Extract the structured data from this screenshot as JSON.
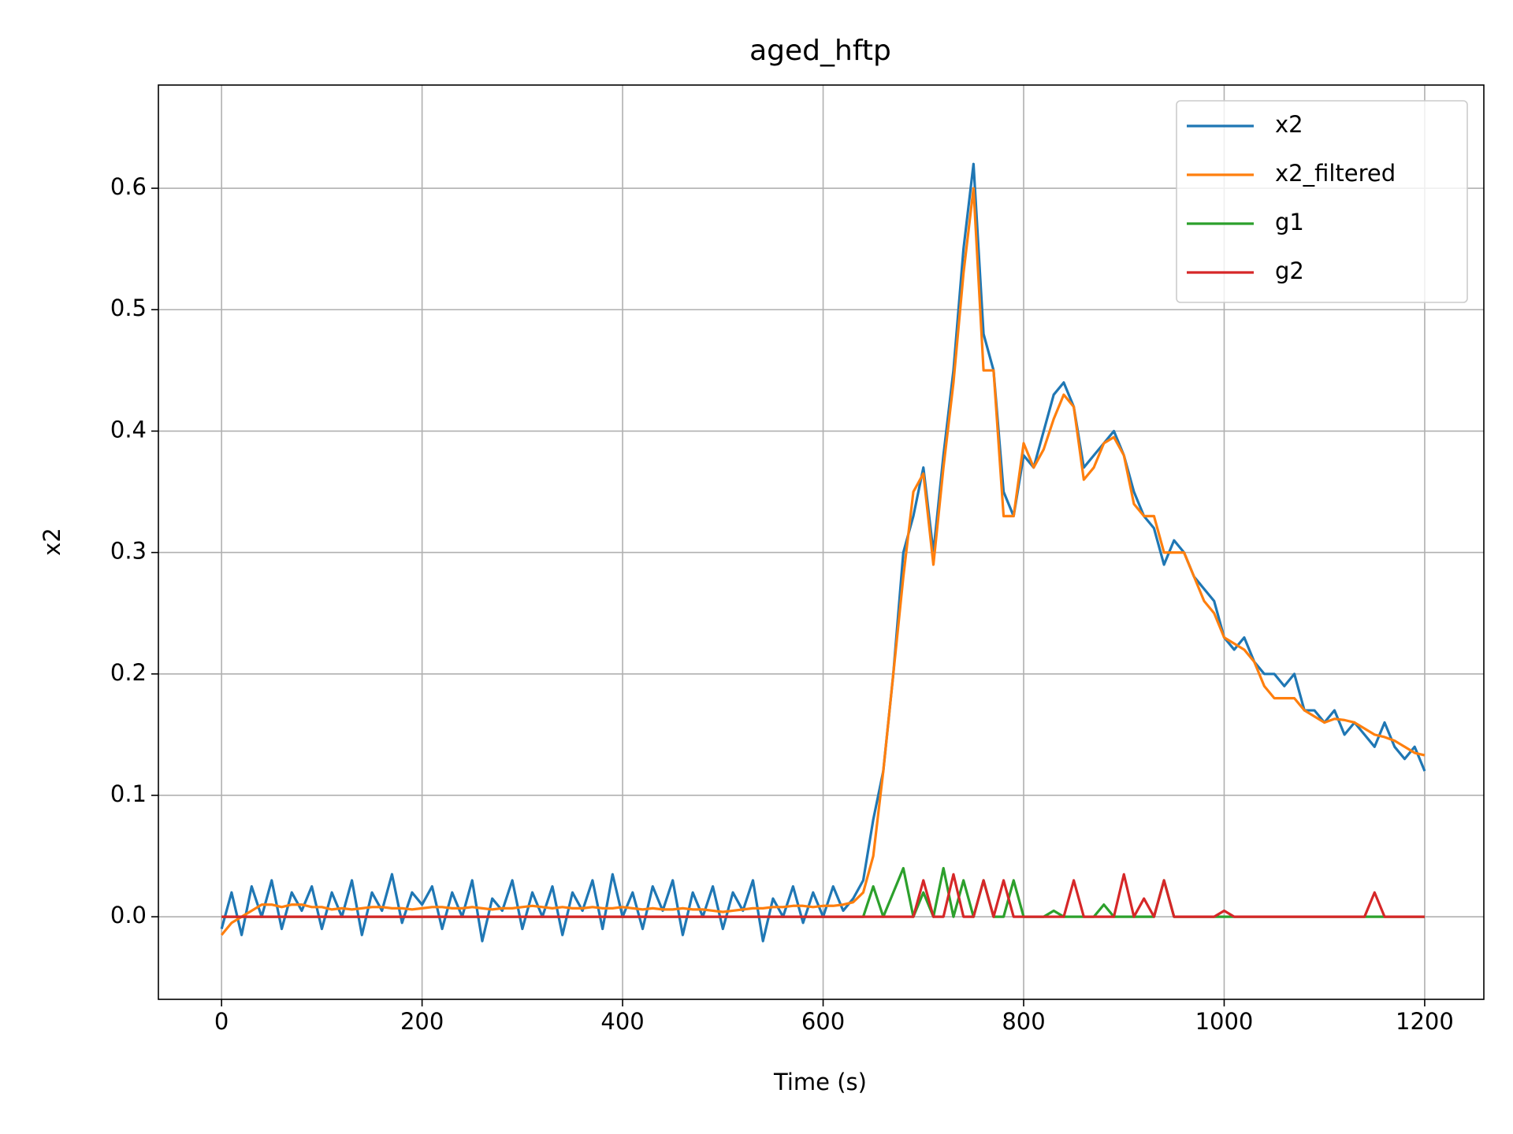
{
  "chart_data": {
    "type": "line",
    "title": "aged_hftp",
    "xlabel": "Time (s)",
    "ylabel": "x2",
    "xlim": [
      -63,
      1259
    ],
    "ylim": [
      -0.068,
      0.685
    ],
    "xticks": [
      0,
      200,
      400,
      600,
      800,
      1000,
      1200
    ],
    "yticks": [
      {
        "value": 0,
        "label": "0.0"
      },
      0.1,
      0.2,
      0.3,
      0.4,
      0.5,
      0.6
    ],
    "grid": true,
    "legend": "upper right",
    "x": [
      0,
      10,
      20,
      30,
      40,
      50,
      60,
      70,
      80,
      90,
      100,
      110,
      120,
      130,
      140,
      150,
      160,
      170,
      180,
      190,
      200,
      210,
      220,
      230,
      240,
      250,
      260,
      270,
      280,
      290,
      300,
      310,
      320,
      330,
      340,
      350,
      360,
      370,
      380,
      390,
      400,
      410,
      420,
      430,
      440,
      450,
      460,
      470,
      480,
      490,
      500,
      510,
      520,
      530,
      540,
      550,
      560,
      570,
      580,
      590,
      600,
      610,
      620,
      630,
      640,
      650,
      660,
      670,
      680,
      690,
      700,
      710,
      720,
      730,
      740,
      750,
      760,
      770,
      780,
      790,
      800,
      810,
      820,
      830,
      840,
      850,
      860,
      870,
      880,
      890,
      900,
      910,
      920,
      930,
      940,
      950,
      960,
      970,
      980,
      990,
      1000,
      1010,
      1020,
      1030,
      1040,
      1050,
      1060,
      1070,
      1080,
      1090,
      1100,
      1110,
      1120,
      1130,
      1140,
      1150,
      1160,
      1170,
      1180,
      1190,
      1200
    ],
    "series": [
      {
        "name": "x2",
        "color": "#1f77b4",
        "values": [
          -0.01,
          0.02,
          -0.015,
          0.025,
          0.0,
          0.03,
          -0.01,
          0.02,
          0.005,
          0.025,
          -0.01,
          0.02,
          0.0,
          0.03,
          -0.015,
          0.02,
          0.005,
          0.035,
          -0.005,
          0.02,
          0.01,
          0.025,
          -0.01,
          0.02,
          0.0,
          0.03,
          -0.02,
          0.015,
          0.005,
          0.03,
          -0.01,
          0.02,
          0.0,
          0.025,
          -0.015,
          0.02,
          0.005,
          0.03,
          -0.01,
          0.035,
          0.0,
          0.02,
          -0.01,
          0.025,
          0.005,
          0.03,
          -0.015,
          0.02,
          0.0,
          0.025,
          -0.01,
          0.02,
          0.005,
          0.03,
          -0.02,
          0.015,
          0.0,
          0.025,
          -0.005,
          0.02,
          0.0,
          0.025,
          0.005,
          0.015,
          0.03,
          0.08,
          0.12,
          0.2,
          0.3,
          0.33,
          0.37,
          0.3,
          0.38,
          0.45,
          0.55,
          0.62,
          0.48,
          0.45,
          0.35,
          0.33,
          0.38,
          0.37,
          0.4,
          0.43,
          0.44,
          0.42,
          0.37,
          0.38,
          0.39,
          0.4,
          0.38,
          0.35,
          0.33,
          0.32,
          0.29,
          0.31,
          0.3,
          0.28,
          0.27,
          0.26,
          0.23,
          0.22,
          0.23,
          0.21,
          0.2,
          0.2,
          0.19,
          0.2,
          0.17,
          0.17,
          0.16,
          0.17,
          0.15,
          0.16,
          0.15,
          0.14,
          0.16,
          0.14,
          0.13,
          0.14,
          0.12
        ]
      },
      {
        "name": "x2_filtered",
        "color": "#ff7f0e",
        "values": [
          -0.015,
          -0.005,
          0.0,
          0.005,
          0.01,
          0.01,
          0.008,
          0.01,
          0.01,
          0.008,
          0.008,
          0.006,
          0.007,
          0.006,
          0.007,
          0.008,
          0.008,
          0.007,
          0.007,
          0.006,
          0.007,
          0.008,
          0.008,
          0.007,
          0.007,
          0.008,
          0.007,
          0.006,
          0.007,
          0.007,
          0.008,
          0.009,
          0.008,
          0.007,
          0.008,
          0.007,
          0.007,
          0.008,
          0.007,
          0.007,
          0.008,
          0.007,
          0.006,
          0.007,
          0.006,
          0.006,
          0.007,
          0.006,
          0.006,
          0.005,
          0.004,
          0.005,
          0.006,
          0.007,
          0.007,
          0.008,
          0.008,
          0.009,
          0.009,
          0.008,
          0.009,
          0.009,
          0.01,
          0.012,
          0.02,
          0.05,
          0.12,
          0.2,
          0.28,
          0.35,
          0.365,
          0.29,
          0.37,
          0.44,
          0.53,
          0.6,
          0.45,
          0.45,
          0.33,
          0.33,
          0.39,
          0.37,
          0.385,
          0.41,
          0.43,
          0.42,
          0.36,
          0.37,
          0.39,
          0.395,
          0.38,
          0.34,
          0.33,
          0.33,
          0.3,
          0.3,
          0.3,
          0.28,
          0.26,
          0.25,
          0.23,
          0.225,
          0.22,
          0.21,
          0.19,
          0.18,
          0.18,
          0.18,
          0.17,
          0.165,
          0.16,
          0.163,
          0.162,
          0.16,
          0.155,
          0.15,
          0.148,
          0.145,
          0.14,
          0.135,
          0.133
        ]
      },
      {
        "name": "g1",
        "color": "#2ca02c",
        "values": [
          0,
          0,
          0,
          0,
          0,
          0,
          0,
          0,
          0,
          0,
          0,
          0,
          0,
          0,
          0,
          0,
          0,
          0,
          0,
          0,
          0,
          0,
          0,
          0,
          0,
          0,
          0,
          0,
          0,
          0,
          0,
          0,
          0,
          0,
          0,
          0,
          0,
          0,
          0,
          0,
          0,
          0,
          0,
          0,
          0,
          0,
          0,
          0,
          0,
          0,
          0,
          0,
          0,
          0,
          0,
          0,
          0,
          0,
          0,
          0,
          0,
          0,
          0,
          0,
          0,
          0.025,
          0,
          0.02,
          0.04,
          0,
          0.02,
          0,
          0.04,
          0,
          0.03,
          0,
          0.03,
          0,
          0,
          0.03,
          0,
          0,
          0,
          0.005,
          0,
          0,
          0,
          0,
          0.01,
          0,
          0,
          0,
          0,
          0,
          0.03,
          0,
          0,
          0,
          0,
          0,
          0,
          0,
          0,
          0,
          0,
          0,
          0,
          0,
          0,
          0,
          0,
          0,
          0,
          0,
          0,
          0,
          0,
          0,
          0,
          0,
          0
        ]
      },
      {
        "name": "g2",
        "color": "#d62728",
        "values": [
          0,
          0,
          0,
          0,
          0,
          0,
          0,
          0,
          0,
          0,
          0,
          0,
          0,
          0,
          0,
          0,
          0,
          0,
          0,
          0,
          0,
          0,
          0,
          0,
          0,
          0,
          0,
          0,
          0,
          0,
          0,
          0,
          0,
          0,
          0,
          0,
          0,
          0,
          0,
          0,
          0,
          0,
          0,
          0,
          0,
          0,
          0,
          0,
          0,
          0,
          0,
          0,
          0,
          0,
          0,
          0,
          0,
          0,
          0,
          0,
          0,
          0,
          0,
          0,
          0,
          0,
          0,
          0,
          0,
          0,
          0.03,
          0,
          0,
          0.035,
          0,
          0,
          0.03,
          0,
          0.03,
          0,
          0,
          0,
          0,
          0,
          0,
          0.03,
          0,
          0,
          0,
          0,
          0.035,
          0,
          0.015,
          0,
          0.03,
          0,
          0,
          0,
          0,
          0,
          0.005,
          0,
          0,
          0,
          0,
          0,
          0,
          0,
          0,
          0,
          0,
          0,
          0,
          0,
          0,
          0.02,
          0,
          0,
          0,
          0,
          0
        ]
      }
    ]
  }
}
